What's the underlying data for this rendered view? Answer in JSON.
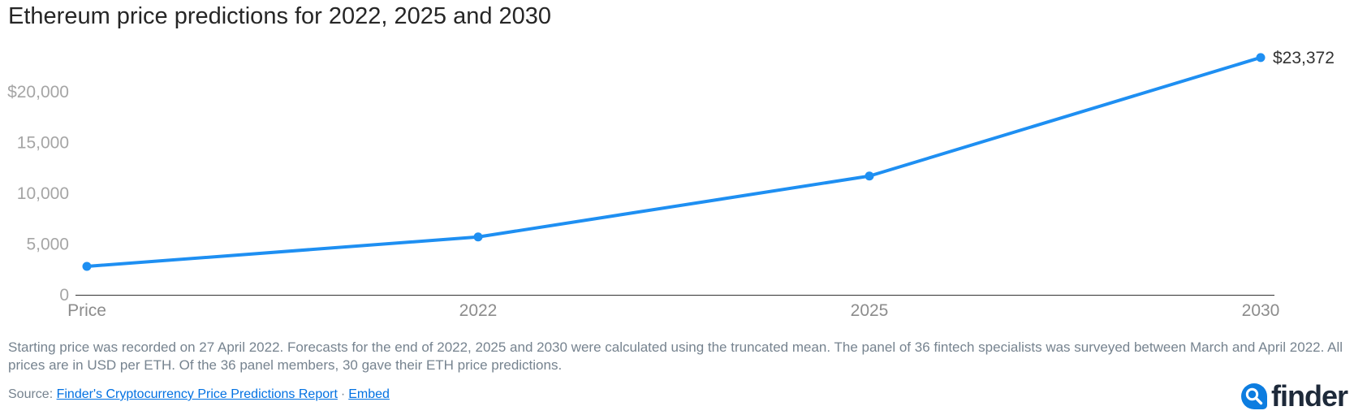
{
  "chart_data": {
    "type": "line",
    "title": "Ethereum price predictions for 2022, 2025 and 2030",
    "categories": [
      "Price",
      "2022",
      "2025",
      "2030"
    ],
    "values": [
      2800,
      5700,
      11700,
      23372
    ],
    "xlabel": "",
    "ylabel": "",
    "ylim": [
      0,
      23500
    ],
    "grid": false,
    "legend": "none",
    "y_ticks": [
      {
        "label": "$20,000",
        "value": 20000
      },
      {
        "label": "15,000",
        "value": 15000
      },
      {
        "label": "10,000",
        "value": 10000
      },
      {
        "label": "5,000",
        "value": 5000
      },
      {
        "label": "0",
        "value": 0
      }
    ],
    "point_label": {
      "index": 3,
      "text": "$23,372"
    },
    "line_color": "#1e8ff2",
    "point_color": "#1e8ff2"
  },
  "footnote": "Starting price was recorded on 27 April 2022. Forecasts for the end of 2022, 2025 and 2030 were calculated using the truncated mean. The panel of 36 fintech specialists was surveyed between March and April 2022. All prices are in USD per ETH. Of the 36 panel members, 30 gave their ETH price predictions.",
  "source": {
    "prefix": "Source:",
    "report_link": "Finder's Cryptocurrency Price Predictions Report",
    "separator": "·",
    "embed_link": "Embed"
  },
  "logo": {
    "text": "finder",
    "icon": "finder-magnifier-bubble-icon",
    "bubble_color": "#0d7de0",
    "text_color": "#1e2a3a"
  },
  "colors": {
    "title_text": "#262626",
    "y_axis_labels": "#a5a5a5",
    "x_axis_labels": "#8c8c8c",
    "axis_line": "#333333",
    "footnote_text": "#76838f",
    "link": "#0271e2",
    "series_line": "#1e8ff2"
  }
}
